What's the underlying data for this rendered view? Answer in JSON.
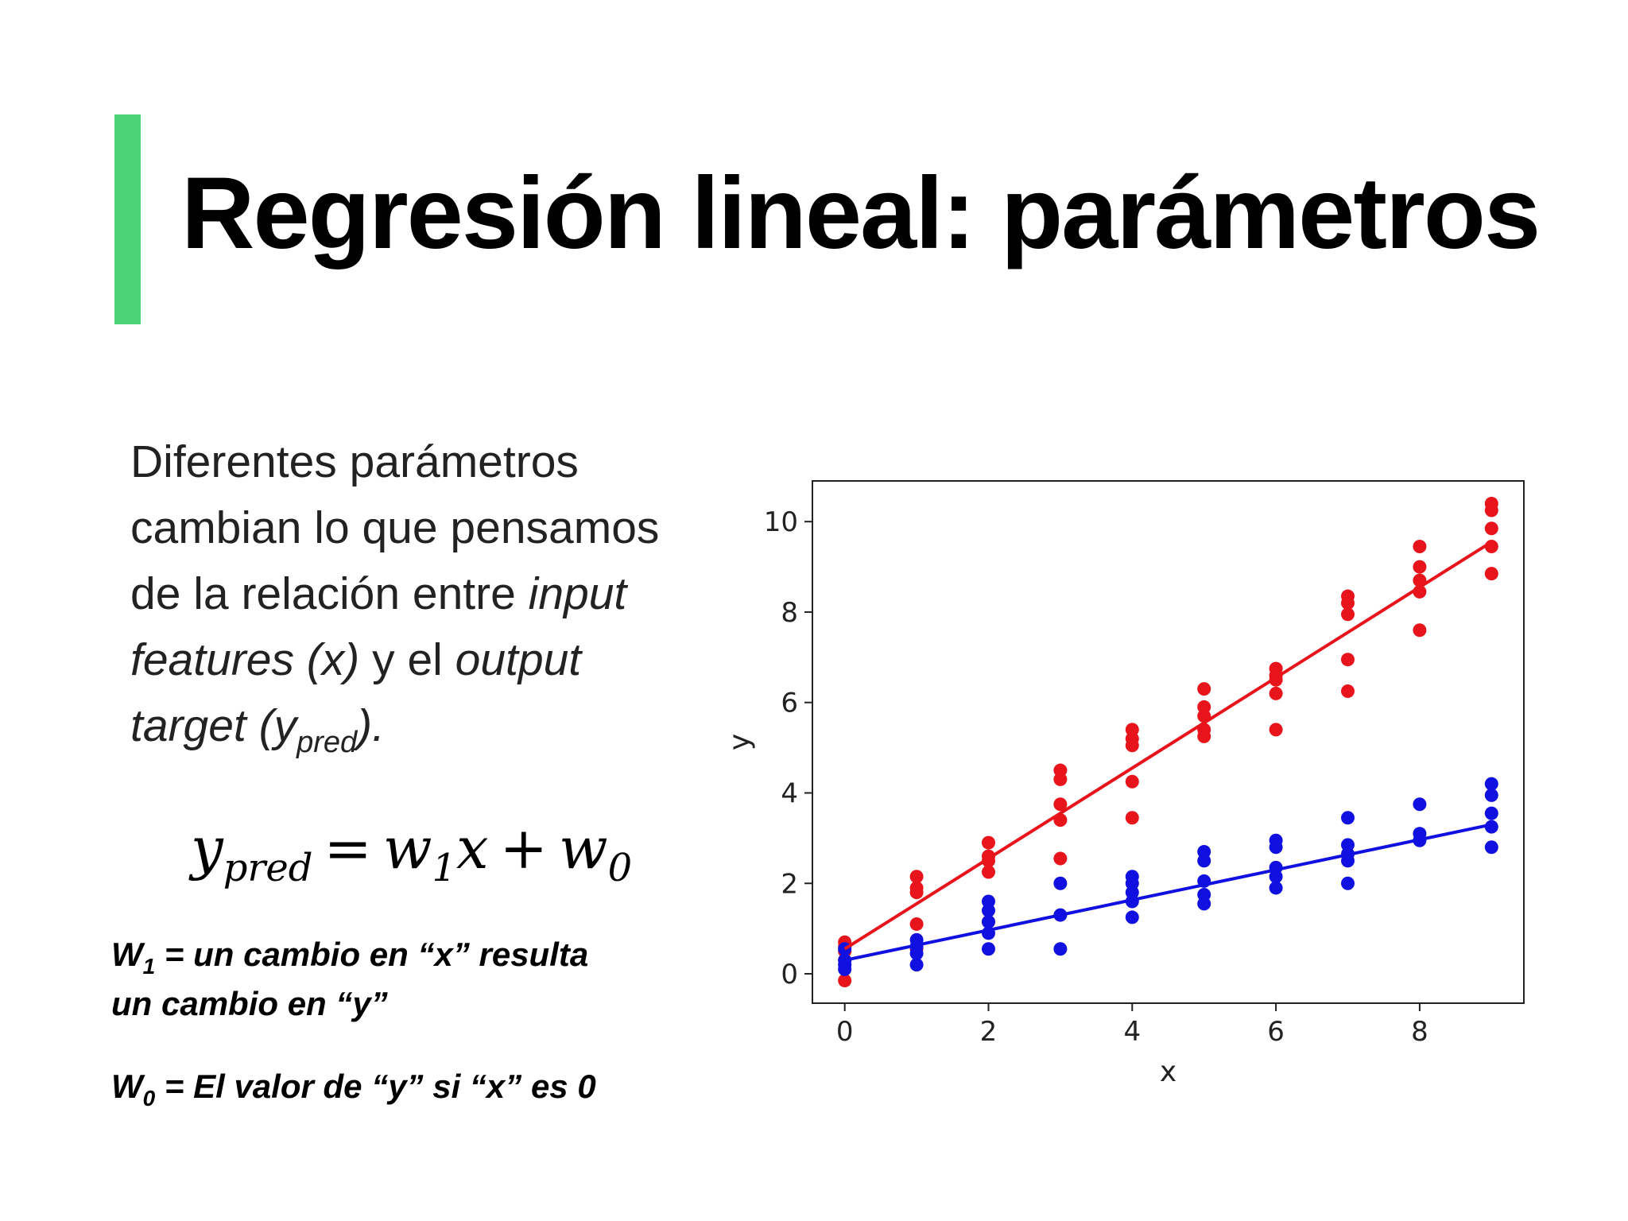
{
  "slide": {
    "title": "Regresión lineal: parámetros",
    "accent_color": "#4cd37a",
    "description": {
      "part1": "Diferentes parámetros cambian lo que pensamos de la relación entre ",
      "input_features": "input features (x)",
      "part2": " y el ",
      "output_target": "output target (y",
      "pred_sub": "pred",
      "part3": ")."
    },
    "formula": {
      "y": "y",
      "y_sub": "pred",
      "equals": "=",
      "w": "w",
      "w1_sub": "1",
      "x": "x",
      "plus": "+",
      "w0_sub": "0"
    },
    "notes": {
      "w1_letter": "W",
      "w1_sub": "1",
      "w1_text": " = un cambio en “x” resulta un cambio en “y”",
      "w0_letter": "W",
      "w0_sub": "0",
      "w0_text": " = El valor de “y” si “x” es 0"
    }
  },
  "chart_data": {
    "type": "scatter",
    "xlabel": "x",
    "ylabel": "y",
    "xlim": [
      -0.45,
      9.45
    ],
    "ylim": [
      -0.65,
      10.9
    ],
    "xticks": [
      0,
      2,
      4,
      6,
      8
    ],
    "yticks": [
      0,
      2,
      4,
      6,
      8,
      10
    ],
    "grid": false,
    "series": [
      {
        "color": "#e8141c",
        "points": [
          [
            0,
            0.7
          ],
          [
            0,
            0.6
          ],
          [
            0,
            0.5
          ],
          [
            0,
            0.3
          ],
          [
            0,
            -0.15
          ],
          [
            1,
            2.15
          ],
          [
            1,
            1.9
          ],
          [
            1,
            1.8
          ],
          [
            1,
            1.1
          ],
          [
            1,
            0.55
          ],
          [
            2,
            2.9
          ],
          [
            2,
            2.6
          ],
          [
            2,
            2.5
          ],
          [
            2,
            2.25
          ],
          [
            2,
            1.15
          ],
          [
            3,
            4.5
          ],
          [
            3,
            4.3
          ],
          [
            3,
            3.75
          ],
          [
            3,
            3.4
          ],
          [
            3,
            2.55
          ],
          [
            4,
            5.4
          ],
          [
            4,
            5.2
          ],
          [
            4,
            5.05
          ],
          [
            4,
            4.25
          ],
          [
            4,
            3.45
          ],
          [
            5,
            6.3
          ],
          [
            5,
            5.9
          ],
          [
            5,
            5.7
          ],
          [
            5,
            5.4
          ],
          [
            5,
            5.25
          ],
          [
            6,
            6.75
          ],
          [
            6,
            6.6
          ],
          [
            6,
            6.5
          ],
          [
            6,
            6.2
          ],
          [
            6,
            5.4
          ],
          [
            7,
            8.35
          ],
          [
            7,
            8.2
          ],
          [
            7,
            7.95
          ],
          [
            7,
            6.95
          ],
          [
            7,
            6.25
          ],
          [
            8,
            9.45
          ],
          [
            8,
            9.0
          ],
          [
            8,
            8.7
          ],
          [
            8,
            8.45
          ],
          [
            8,
            7.6
          ],
          [
            9,
            10.4
          ],
          [
            9,
            10.25
          ],
          [
            9,
            9.85
          ],
          [
            9,
            9.45
          ],
          [
            9,
            8.85
          ]
        ],
        "fit": [
          [
            0,
            0.55
          ],
          [
            9,
            9.55
          ]
        ]
      },
      {
        "color": "#1010e0",
        "points": [
          [
            0,
            0.55
          ],
          [
            0,
            0.3
          ],
          [
            0,
            0.2
          ],
          [
            0,
            0.1
          ],
          [
            1,
            0.75
          ],
          [
            1,
            0.6
          ],
          [
            1,
            0.45
          ],
          [
            1,
            0.2
          ],
          [
            2,
            1.6
          ],
          [
            2,
            1.4
          ],
          [
            2,
            1.15
          ],
          [
            2,
            0.9
          ],
          [
            2,
            0.55
          ],
          [
            3,
            2.0
          ],
          [
            3,
            1.3
          ],
          [
            3,
            0.55
          ],
          [
            4,
            2.15
          ],
          [
            4,
            2.0
          ],
          [
            4,
            1.8
          ],
          [
            4,
            1.6
          ],
          [
            4,
            1.25
          ],
          [
            5,
            2.7
          ],
          [
            5,
            2.5
          ],
          [
            5,
            2.05
          ],
          [
            5,
            1.75
          ],
          [
            5,
            1.55
          ],
          [
            6,
            2.95
          ],
          [
            6,
            2.8
          ],
          [
            6,
            2.35
          ],
          [
            6,
            2.15
          ],
          [
            6,
            1.9
          ],
          [
            7,
            3.45
          ],
          [
            7,
            2.85
          ],
          [
            7,
            2.65
          ],
          [
            7,
            2.5
          ],
          [
            7,
            2.0
          ],
          [
            8,
            3.75
          ],
          [
            8,
            3.1
          ],
          [
            8,
            2.95
          ],
          [
            9,
            4.2
          ],
          [
            9,
            3.95
          ],
          [
            9,
            3.55
          ],
          [
            9,
            3.25
          ],
          [
            9,
            2.8
          ]
        ],
        "fit": [
          [
            0,
            0.3
          ],
          [
            9,
            3.3
          ]
        ]
      }
    ]
  }
}
